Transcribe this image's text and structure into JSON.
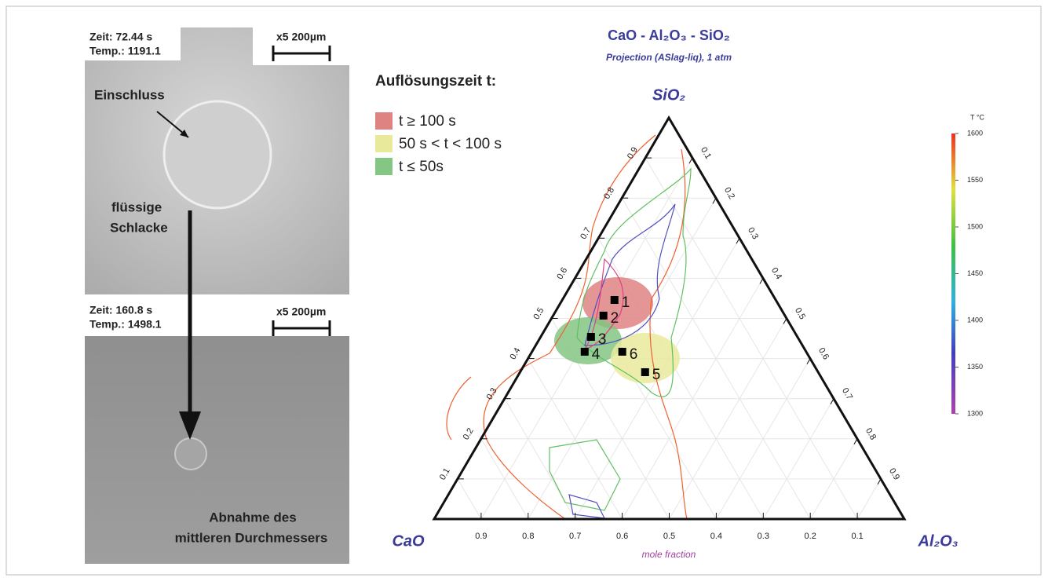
{
  "images": {
    "top": {
      "time": "Zeit: 72.44 s",
      "temp": "Temp.: 1191.1",
      "scale": "x5 200µm",
      "inclusion": "Einschluss",
      "slag": [
        "flüssige",
        "Schlacke"
      ]
    },
    "bottom": {
      "time": "Zeit: 160.8 s",
      "temp": "Temp.: 1498.1",
      "scale": "x5 200µm",
      "caption": [
        "Abnahme des",
        "mittleren Durchmessers"
      ]
    }
  },
  "chart_data": {
    "type": "ternary",
    "title": "CaO - Al₂O₃ - SiO₂",
    "subtitle": "Projection (ASlag-liq), 1 atm",
    "corners": {
      "CaO": "CaO",
      "Al2O3": "Al₂O₃",
      "SiO2": "SiO₂"
    },
    "axis_label": "mole fraction",
    "cao_ticks": [
      0.1,
      0.2,
      0.3,
      0.4,
      0.5,
      0.6,
      0.7,
      0.8,
      0.9
    ],
    "sio2_ticks": [
      0.1,
      0.2,
      0.3,
      0.4,
      0.5,
      0.6,
      0.7,
      0.8,
      0.9
    ],
    "al2o3_ticks": [
      0.1,
      0.2,
      0.3,
      0.4,
      0.5,
      0.6,
      0.7,
      0.8,
      0.9
    ],
    "grid": true,
    "legend": {
      "title": "Auflösungszeit t:",
      "entries": [
        {
          "name": "t ≥ 100 s",
          "color": "#df8282"
        },
        {
          "name": "50 s < t < 100 s",
          "color": "#e9e99c"
        },
        {
          "name": "t ≤ 50s",
          "color": "#84c684"
        }
      ]
    },
    "points": [
      {
        "label": "1",
        "CaO": 0.343,
        "Al2O3": 0.111,
        "SiO2": 0.546
      },
      {
        "label": "2",
        "CaO": 0.386,
        "Al2O3": 0.107,
        "SiO2": 0.507
      },
      {
        "label": "3",
        "CaO": 0.439,
        "Al2O3": 0.107,
        "SiO2": 0.454
      },
      {
        "label": "4",
        "CaO": 0.471,
        "Al2O3": 0.112,
        "SiO2": 0.417
      },
      {
        "label": "5",
        "CaO": 0.368,
        "Al2O3": 0.266,
        "SiO2": 0.366
      },
      {
        "label": "6",
        "CaO": 0.391,
        "Al2O3": 0.192,
        "SiO2": 0.417
      }
    ],
    "colorbar": {
      "label": "T °C",
      "lim": [
        1300,
        1600
      ],
      "ticks": [
        1300,
        1350,
        1400,
        1450,
        1500,
        1550,
        1600
      ]
    }
  }
}
